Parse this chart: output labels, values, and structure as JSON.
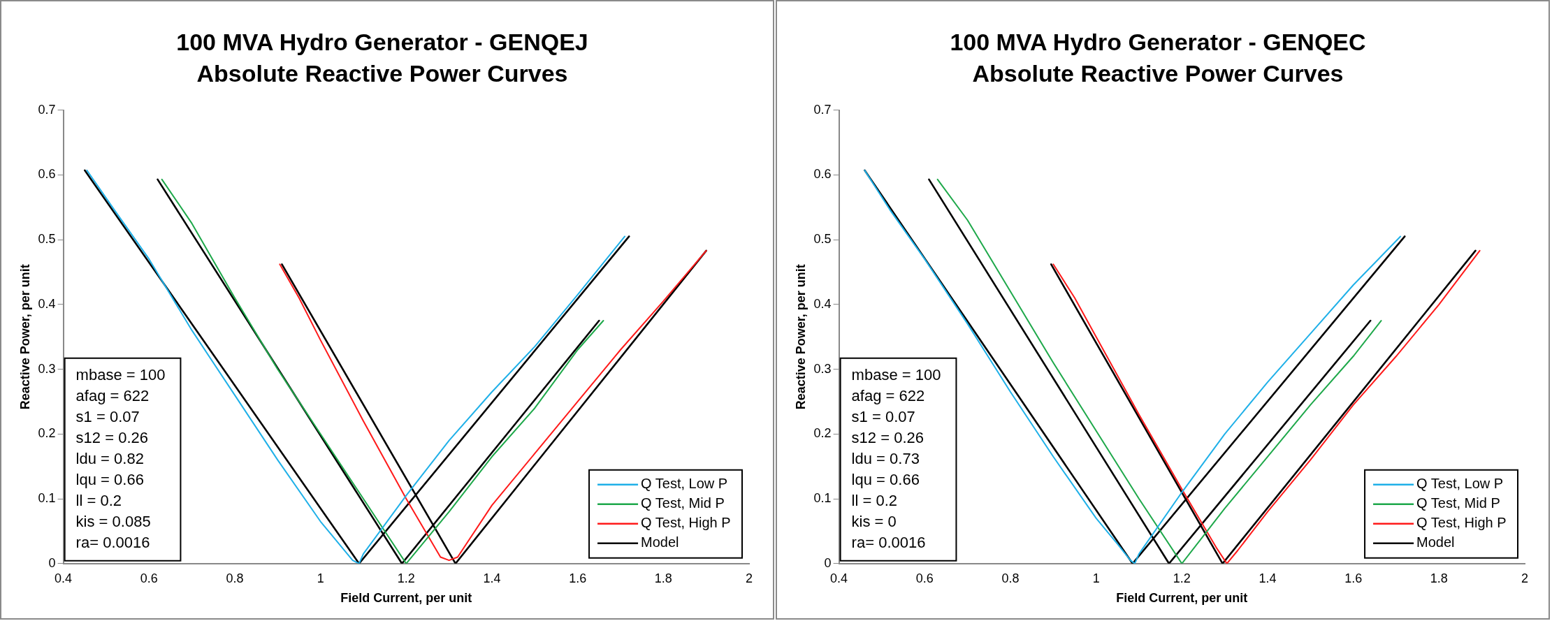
{
  "chart_data": [
    {
      "type": "line",
      "title": "100 MVA Hydro Generator - GENQEJ",
      "subtitle": "Absolute Reactive Power Curves",
      "xlabel": "Field Current, per unit",
      "ylabel": "Reactive Power, per unit",
      "xlim": [
        0.4,
        2
      ],
      "xticks": [
        0.4,
        0.6,
        0.8,
        1,
        1.2,
        1.4,
        1.6,
        1.8,
        2
      ],
      "ylim": [
        0,
        0.7
      ],
      "yticks": [
        0,
        0.1,
        0.2,
        0.3,
        0.4,
        0.5,
        0.6,
        0.7
      ],
      "grid": false,
      "legend": "bottom right",
      "marker": "none",
      "line_style": "solid",
      "annotations": [
        "mbase = 100",
        "afag = 622",
        "s1 = 0.07",
        "s12 = 0.26",
        "ldu = 0.82",
        "lqu = 0.66",
        "ll = 0.2",
        "kis = 0.085",
        "ra= 0.0016"
      ],
      "series": [
        {
          "name": "Q Test, Low P",
          "color": "#1fb0e8",
          "x": [
            0.455,
            0.52,
            0.6,
            0.7,
            0.8,
            0.9,
            1.0,
            1.05,
            1.075,
            1.09,
            1.1,
            1.2,
            1.3,
            1.4,
            1.5,
            1.6,
            1.71
          ],
          "values": [
            0.607,
            0.545,
            0.47,
            0.36,
            0.26,
            0.16,
            0.065,
            0.025,
            0.005,
            0.0,
            0.015,
            0.105,
            0.19,
            0.265,
            0.335,
            0.415,
            0.505
          ]
        },
        {
          "name": "Q Test, Mid P",
          "color": "#1ea84a",
          "x": [
            0.63,
            0.7,
            0.8,
            0.9,
            1.0,
            1.1,
            1.2,
            1.3,
            1.4,
            1.5,
            1.6,
            1.66
          ],
          "values": [
            0.593,
            0.525,
            0.41,
            0.3,
            0.2,
            0.1,
            0.0,
            0.08,
            0.165,
            0.24,
            0.33,
            0.375
          ]
        },
        {
          "name": "Q Test, High P",
          "color": "#ff1a1a",
          "x": [
            0.905,
            0.95,
            1.0,
            1.1,
            1.2,
            1.28,
            1.3,
            1.32,
            1.4,
            1.5,
            1.6,
            1.7,
            1.8,
            1.9
          ],
          "values": [
            0.462,
            0.41,
            0.345,
            0.22,
            0.1,
            0.01,
            0.005,
            0.01,
            0.09,
            0.17,
            0.25,
            0.33,
            0.405,
            0.483
          ]
        },
        {
          "name": "Model",
          "color": "#000000",
          "x": [
            0.45,
            1.09,
            1.72,
            null,
            0.62,
            1.19,
            1.65,
            null,
            0.91,
            1.315,
            1.9
          ],
          "values": [
            0.607,
            0.0,
            0.505,
            null,
            0.593,
            0.0,
            0.375,
            null,
            0.462,
            0.0,
            0.483
          ]
        }
      ]
    },
    {
      "type": "line",
      "title": "100 MVA Hydro Generator - GENQEC",
      "subtitle": "Absolute Reactive Power Curves",
      "xlabel": "Field Current, per unit",
      "ylabel": "Reactive Power, per unit",
      "xlim": [
        0.4,
        2
      ],
      "xticks": [
        0.4,
        0.6,
        0.8,
        1,
        1.2,
        1.4,
        1.6,
        1.8,
        2
      ],
      "ylim": [
        0,
        0.7
      ],
      "yticks": [
        0,
        0.1,
        0.2,
        0.3,
        0.4,
        0.5,
        0.6,
        0.7
      ],
      "grid": false,
      "legend": "bottom right",
      "marker": "none",
      "line_style": "solid",
      "annotations": [
        "mbase = 100",
        "afag = 622",
        "s1 = 0.07",
        "s12 = 0.26",
        "ldu = 0.73",
        "lqu = 0.66",
        "ll = 0.2",
        "kis = 0",
        "ra= 0.0016"
      ],
      "series": [
        {
          "name": "Q Test, Low P",
          "color": "#1fb0e8",
          "x": [
            0.46,
            0.52,
            0.6,
            0.7,
            0.8,
            0.9,
            1.0,
            1.05,
            1.08,
            1.09,
            1.1,
            1.2,
            1.3,
            1.4,
            1.5,
            1.6,
            1.71
          ],
          "values": [
            0.607,
            0.545,
            0.47,
            0.37,
            0.265,
            0.165,
            0.07,
            0.03,
            0.005,
            0.0,
            0.015,
            0.11,
            0.2,
            0.28,
            0.355,
            0.43,
            0.505
          ]
        },
        {
          "name": "Q Test, Mid P",
          "color": "#1ea84a",
          "x": [
            0.63,
            0.7,
            0.8,
            0.9,
            1.0,
            1.1,
            1.2,
            1.3,
            1.4,
            1.5,
            1.6,
            1.665
          ],
          "values": [
            0.593,
            0.53,
            0.42,
            0.31,
            0.205,
            0.1,
            0.0,
            0.085,
            0.165,
            0.245,
            0.32,
            0.375
          ]
        },
        {
          "name": "Q Test, High P",
          "color": "#ff1a1a",
          "x": [
            0.9,
            0.95,
            1.0,
            1.1,
            1.2,
            1.28,
            1.305,
            1.33,
            1.4,
            1.5,
            1.6,
            1.7,
            1.8,
            1.895
          ],
          "values": [
            0.462,
            0.41,
            0.35,
            0.23,
            0.115,
            0.025,
            0.0,
            0.02,
            0.08,
            0.16,
            0.245,
            0.32,
            0.4,
            0.483
          ]
        },
        {
          "name": "Model",
          "color": "#000000",
          "x": [
            0.46,
            1.085,
            1.72,
            null,
            0.61,
            1.17,
            1.64,
            null,
            0.895,
            1.295,
            1.885
          ],
          "values": [
            0.607,
            0.0,
            0.505,
            null,
            0.593,
            0.0,
            0.375,
            null,
            0.462,
            0.0,
            0.483
          ]
        }
      ]
    }
  ]
}
